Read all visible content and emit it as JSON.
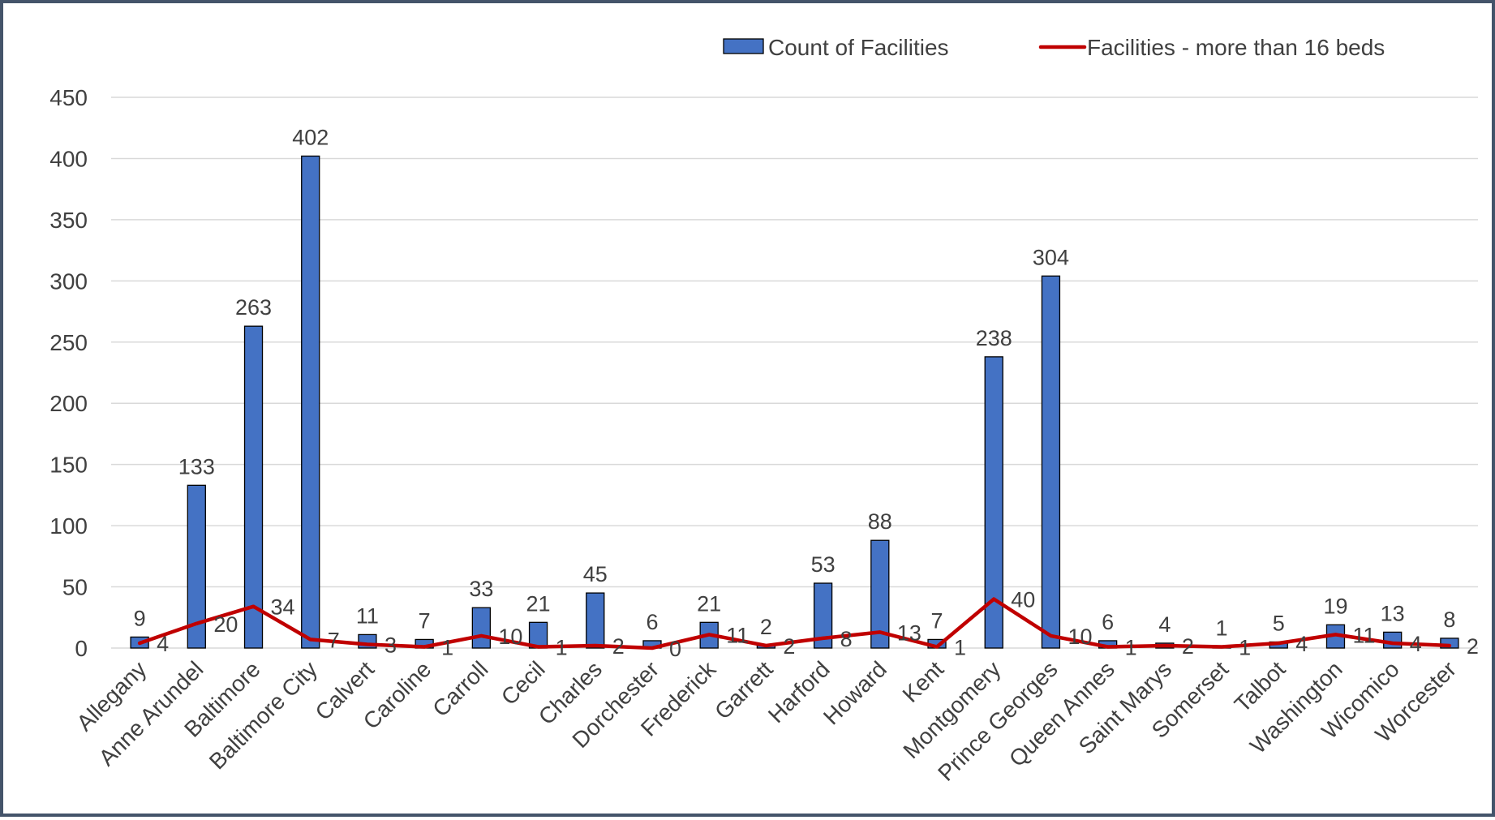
{
  "chart_data": {
    "type": "bar",
    "title": "",
    "xlabel": "",
    "ylabel": "",
    "ylim": [
      0,
      450
    ],
    "yticks": [
      0,
      50,
      100,
      150,
      200,
      250,
      300,
      350,
      400,
      450
    ],
    "grid": true,
    "legend_position": "top",
    "categories": [
      "Allegany",
      "Anne Arundel",
      "Baltimore",
      "Baltimore City",
      "Calvert",
      "Caroline",
      "Carroll",
      "Cecil",
      "Charles",
      "Dorchester",
      "Frederick",
      "Garrett",
      "Harford",
      "Howard",
      "Kent",
      "Montgomery",
      "Prince Georges",
      "Queen Annes",
      "Saint Marys",
      "Somerset",
      "Talbot",
      "Washington",
      "Wicomico",
      "Worcester"
    ],
    "series": [
      {
        "name": "Count of Facilities",
        "type": "bar",
        "color": "#4472c4",
        "values": [
          9,
          133,
          263,
          402,
          11,
          7,
          33,
          21,
          45,
          6,
          21,
          2,
          53,
          88,
          7,
          238,
          304,
          6,
          4,
          1,
          5,
          19,
          13,
          8
        ]
      },
      {
        "name": "Facilities - more than 16 beds",
        "type": "line",
        "color": "#c00000",
        "values": [
          4,
          20,
          34,
          7,
          3,
          1,
          10,
          1,
          2,
          0,
          11,
          2,
          8,
          13,
          1,
          40,
          10,
          1,
          2,
          1,
          4,
          11,
          4,
          2
        ]
      }
    ]
  }
}
